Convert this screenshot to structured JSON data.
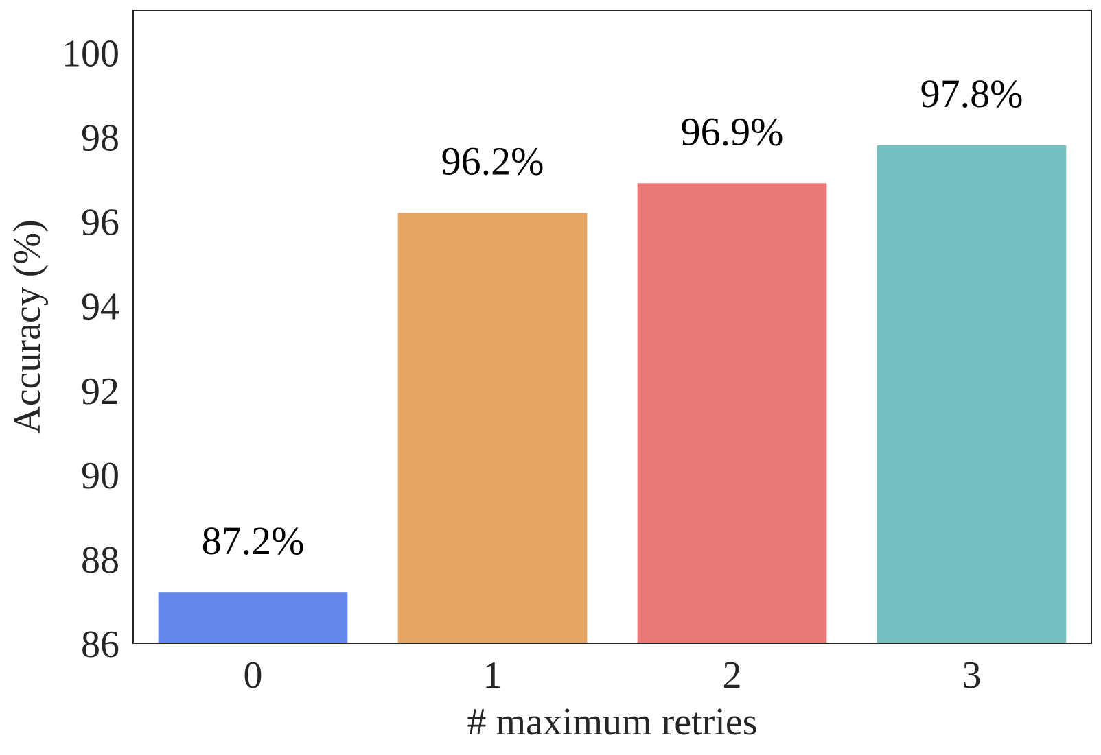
{
  "chart_data": {
    "type": "bar",
    "categories": [
      "0",
      "1",
      "2",
      "3"
    ],
    "values": [
      87.2,
      96.2,
      96.9,
      97.8
    ],
    "value_labels": [
      "87.2%",
      "96.2%",
      "96.9%",
      "97.8%"
    ],
    "colors": [
      "#6586EA",
      "#E6A663",
      "#EA7A79",
      "#75C0C0"
    ],
    "title": "",
    "xlabel": "# maximum retries",
    "ylabel": "Accuracy (%)",
    "ylim": [
      86,
      101
    ],
    "yticks": [
      "86",
      "88",
      "90",
      "92",
      "94",
      "96",
      "98",
      "100"
    ],
    "grid": false,
    "legend": "none"
  }
}
